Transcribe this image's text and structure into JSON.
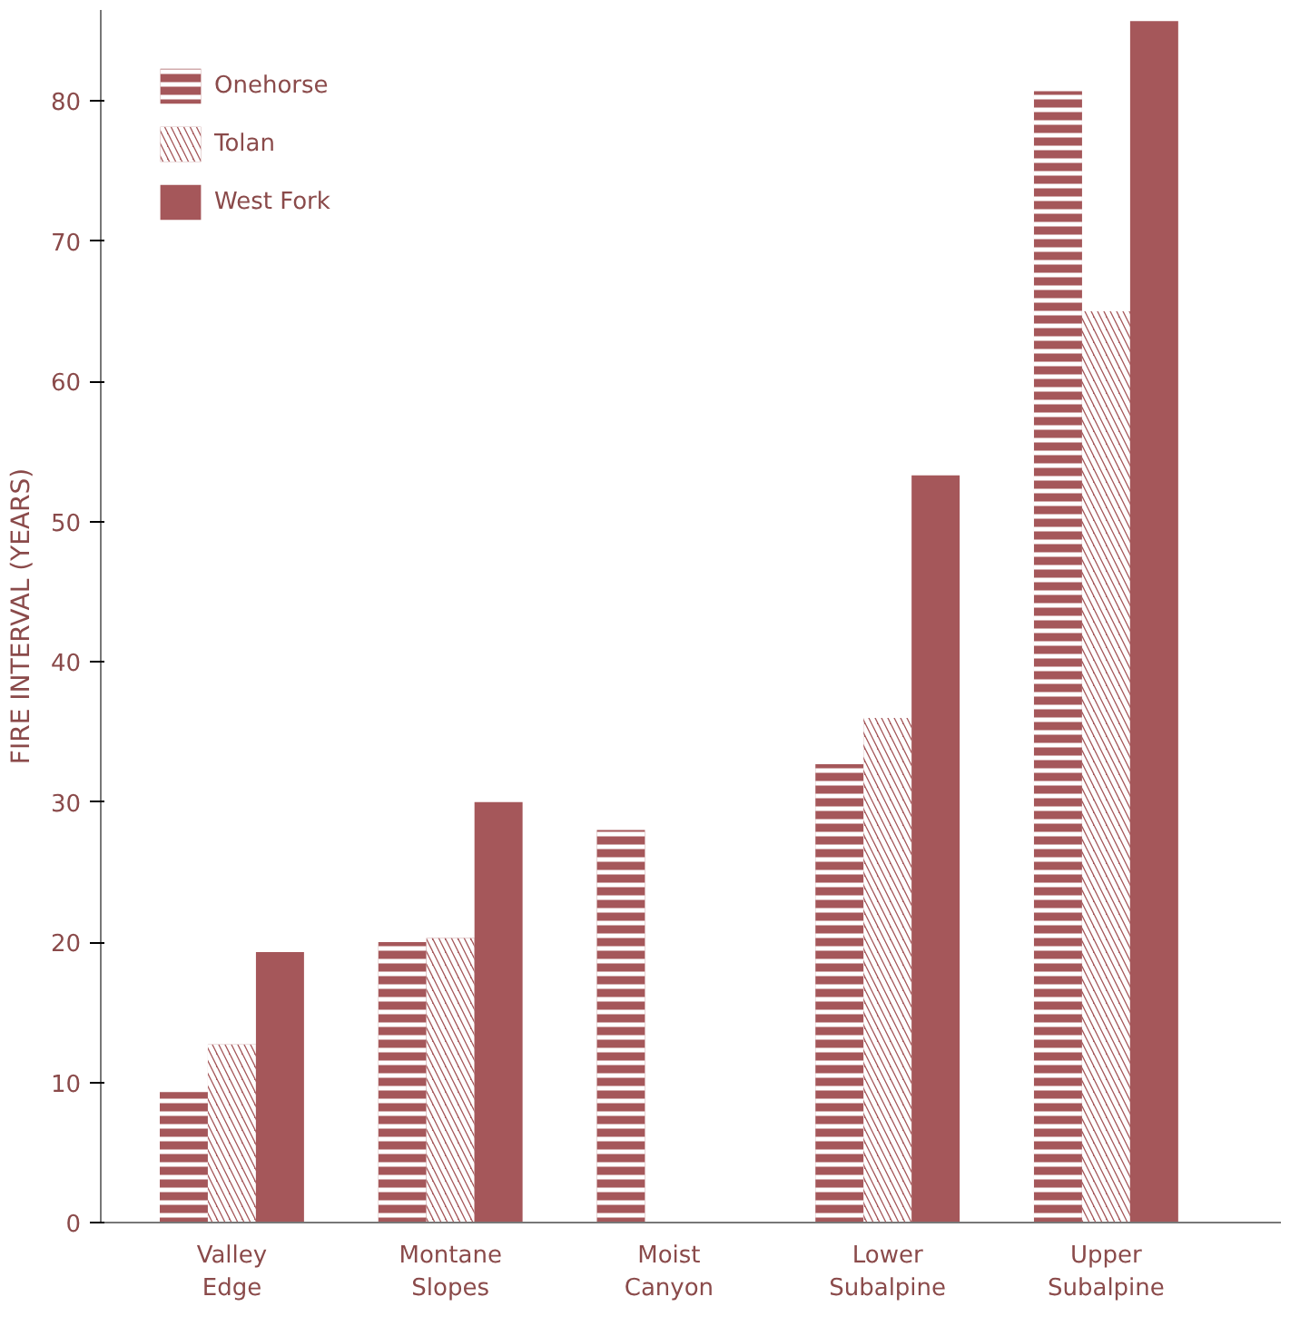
{
  "chart_data": {
    "type": "bar",
    "ylabel": "FIRE INTERVAL (YEARS)",
    "categories": [
      "Valley Edge",
      "Montane Slopes",
      "Moist Canyon",
      "Lower Subalpine",
      "Upper Subalpine"
    ],
    "series": [
      {
        "name": "Onehorse",
        "color": "#a5575a",
        "values": [
          9.3,
          20,
          28,
          32.7,
          80.7
        ]
      },
      {
        "name": "Tolan",
        "color": "#a5575a",
        "values": [
          12.7,
          20.3,
          null,
          36,
          65
        ]
      },
      {
        "name": "West Fork",
        "color": "#a5575a",
        "values": [
          19.3,
          30,
          null,
          53.3,
          85.7
        ]
      }
    ],
    "ylim": [
      0,
      86.5
    ],
    "yticks": [
      0,
      10,
      20,
      30,
      40,
      50,
      60,
      70,
      80
    ],
    "grid": false,
    "legend": "top left"
  }
}
